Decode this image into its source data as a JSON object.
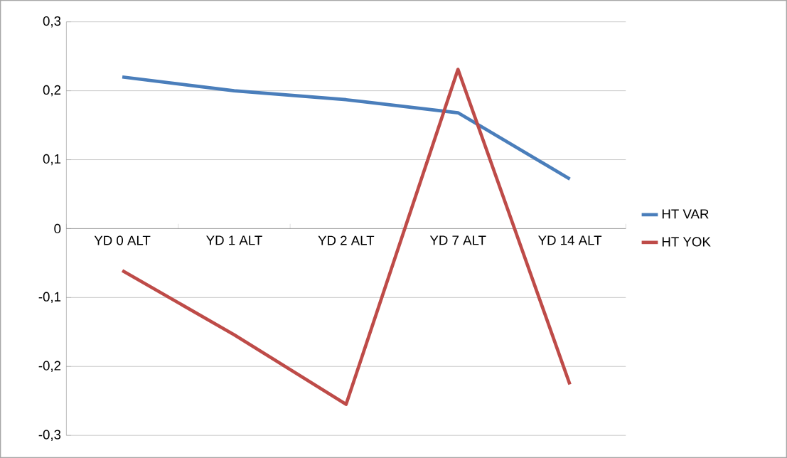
{
  "chart_data": {
    "type": "line",
    "categories": [
      "YD 0 ALT",
      "YD 1 ALT",
      "YD 2 ALT",
      "YD 7 ALT",
      "YD 14 ALT"
    ],
    "series": [
      {
        "name": "HT VAR",
        "color": "#4a7ebb",
        "values": [
          0.22,
          0.2,
          0.187,
          0.168,
          0.072
        ]
      },
      {
        "name": "HT YOK",
        "color": "#be4b48",
        "values": [
          -0.061,
          -0.154,
          -0.255,
          0.231,
          -0.226
        ]
      }
    ],
    "ylim": [
      -0.3,
      0.3
    ],
    "yticks": [
      {
        "value": -0.3,
        "label": "-0,3"
      },
      {
        "value": -0.2,
        "label": "-0,2"
      },
      {
        "value": -0.1,
        "label": "-0,1"
      },
      {
        "value": 0,
        "label": "0"
      },
      {
        "value": 0.1,
        "label": "0,1"
      },
      {
        "value": 0.2,
        "label": "0,2"
      },
      {
        "value": 0.3,
        "label": "0,3"
      }
    ],
    "grid": "y",
    "legend": "right",
    "marker": "none",
    "line_style": "solid"
  }
}
